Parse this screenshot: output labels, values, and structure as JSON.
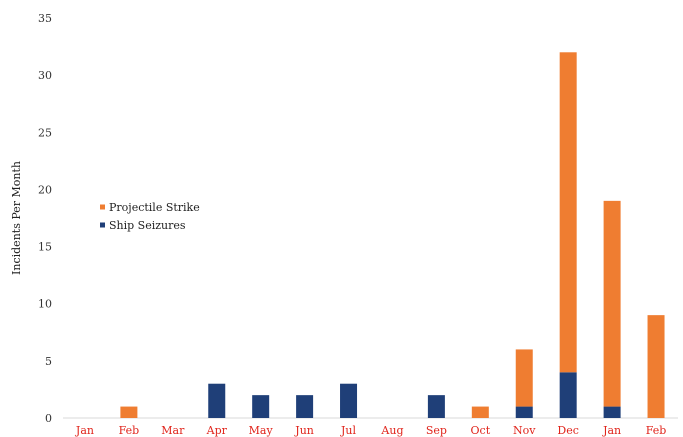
{
  "chart_data": {
    "type": "bar",
    "stacked": true,
    "categories": [
      "Jan",
      "Feb",
      "Mar",
      "Apr",
      "May",
      "Jun",
      "Jul",
      "Aug",
      "Sep",
      "Oct",
      "Nov",
      "Dec",
      "Jan",
      "Feb"
    ],
    "series": [
      {
        "name": "Ship Seizures",
        "color": "#1f3f78",
        "values": [
          0,
          0,
          0,
          3,
          2,
          2,
          3,
          0,
          2,
          0,
          1,
          4,
          1,
          0
        ]
      },
      {
        "name": "Projectile Strike",
        "color": "#ef7d31",
        "values": [
          0,
          1,
          0,
          0,
          0,
          0,
          0,
          0,
          0,
          1,
          5,
          28,
          18,
          9
        ]
      }
    ],
    "legend_order": [
      "Projectile Strike",
      "Ship Seizures"
    ],
    "title": "",
    "xlabel": "",
    "ylabel": "Incidents Per Month",
    "ylim": [
      0,
      35
    ],
    "yticks": [
      0,
      5,
      10,
      15,
      20,
      25,
      30,
      35
    ],
    "legend_position": "left",
    "grid": false,
    "xtick_color": "#e0241b",
    "ytick_color": "#333333"
  }
}
